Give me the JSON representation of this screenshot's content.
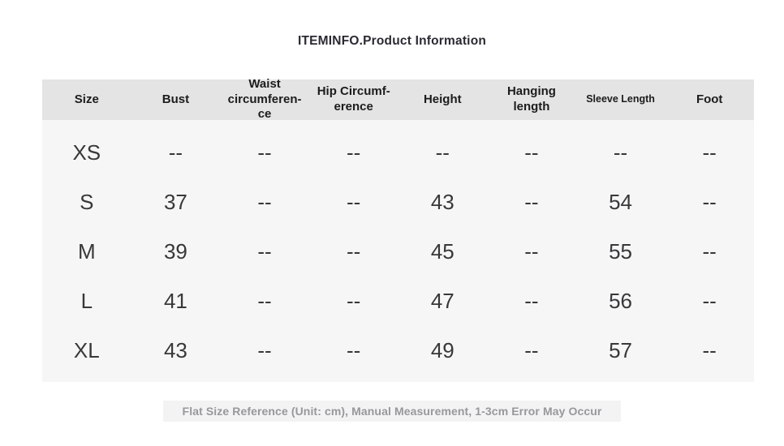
{
  "page": {
    "title": "ITEMINFO.Product Information",
    "footnote": "Flat Size Reference (Unit: cm), Manual Measurement, 1-3cm Error May Occur"
  },
  "colors": {
    "header_row_bg": "#e4e4e4",
    "body_bg": "#f6f6f6",
    "footnote_bg": "#f3f3f4",
    "title_text": "#2a2a33",
    "cell_text": "#38383a",
    "footnote_text": "#98989b"
  },
  "table": {
    "headers": [
      {
        "label": "Size"
      },
      {
        "label": "Bust"
      },
      {
        "label": "Waist\ncircumferen-\nce"
      },
      {
        "label": "Hip Circumf-\nerence"
      },
      {
        "label": "Height"
      },
      {
        "label": "Hanging\nlength"
      },
      {
        "label": "Sleeve Length"
      },
      {
        "label": "Foot"
      }
    ],
    "rows": [
      {
        "cells": [
          "XS",
          "--",
          "--",
          "--",
          "--",
          "--",
          "--",
          "--"
        ]
      },
      {
        "cells": [
          "S",
          "37",
          "--",
          "--",
          "43",
          "--",
          "54",
          "--"
        ]
      },
      {
        "cells": [
          "M",
          "39",
          "--",
          "--",
          "45",
          "--",
          "55",
          "--"
        ]
      },
      {
        "cells": [
          "L",
          "41",
          "--",
          "--",
          "47",
          "--",
          "56",
          "--"
        ]
      },
      {
        "cells": [
          "XL",
          "43",
          "--",
          "--",
          "49",
          "--",
          "57",
          "--"
        ]
      }
    ]
  }
}
